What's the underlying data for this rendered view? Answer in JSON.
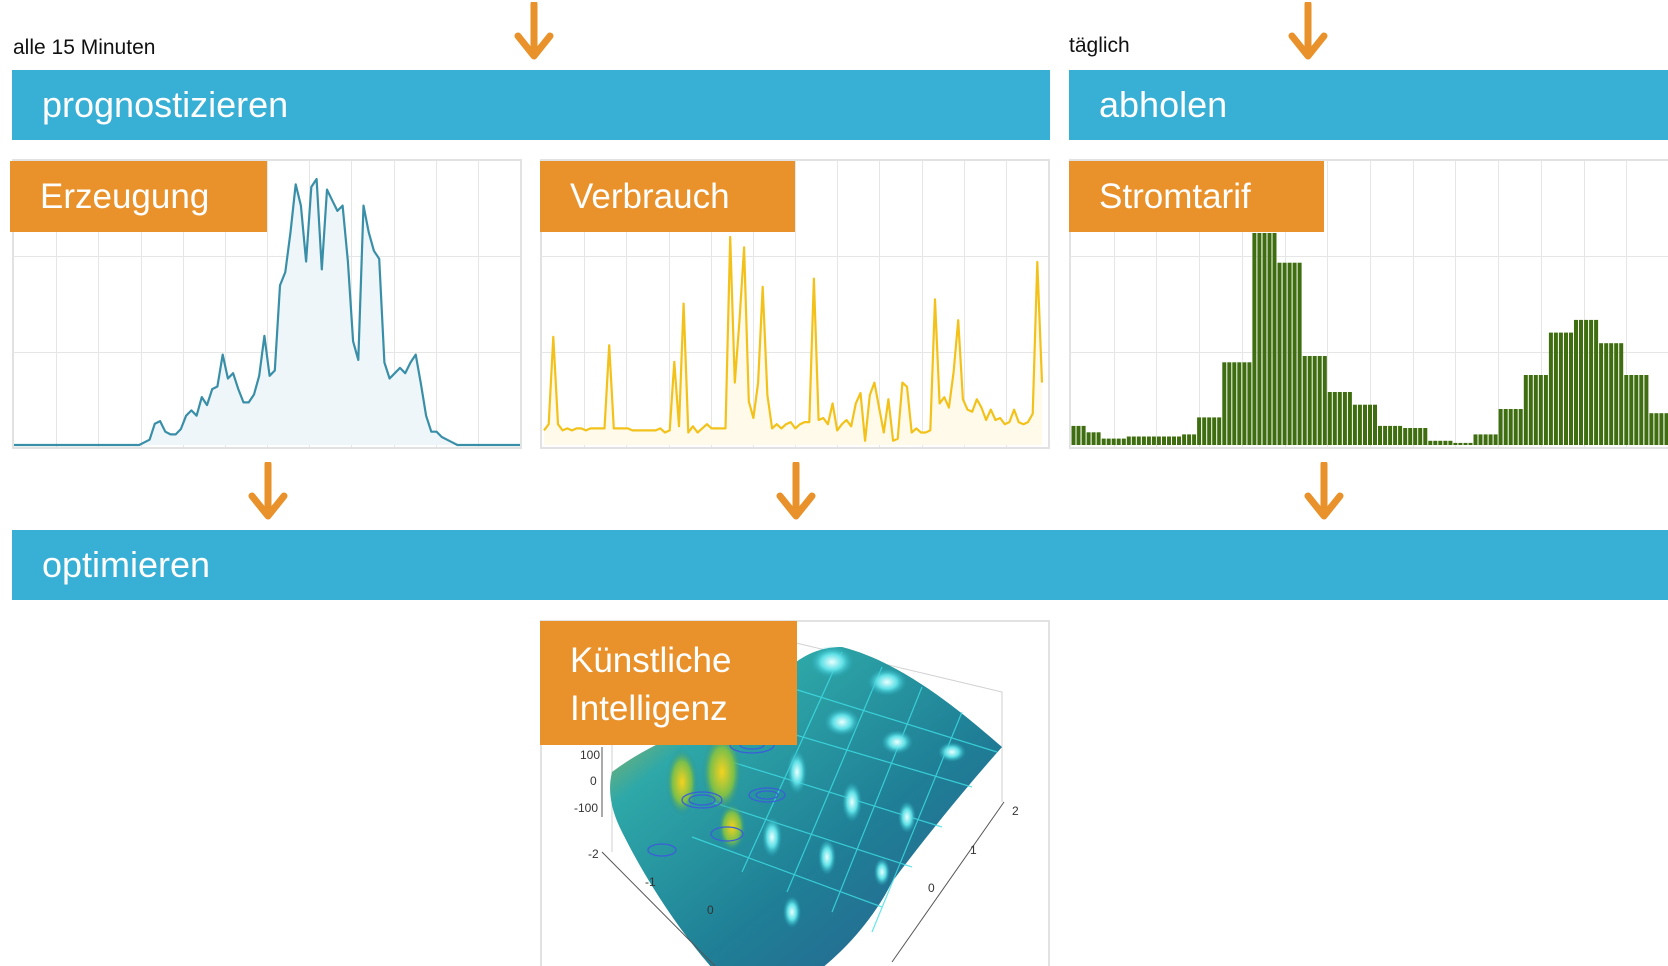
{
  "labels": {
    "frequency_left": "alle 15 Minuten",
    "frequency_right": "täglich"
  },
  "bars": {
    "forecast": "prognostizieren",
    "fetch": "abholen",
    "optimize": "optimieren"
  },
  "panels": {
    "generation": "Erzeugung",
    "consumption": "Verbrauch",
    "tariff": "Stromtarif",
    "ai_line1": "Künstliche",
    "ai_line2": "Intelligenz"
  },
  "ai_plot_ticks": {
    "z": [
      "100",
      "0",
      "-100"
    ],
    "x": [
      "-2",
      "-1",
      "0"
    ],
    "y": [
      "2",
      "1",
      "0"
    ]
  },
  "colors": {
    "bar_blue": "#38afd4",
    "tag_orange": "#e9912b",
    "arrow_orange": "#e9912b",
    "generation_line": "#3a8fa8",
    "consumption_line": "#f2c21b",
    "tariff_bars": "#3f6e10"
  },
  "chart_data": [
    {
      "type": "area",
      "series": [
        {
          "values": [
            0,
            0,
            0,
            0,
            0,
            0,
            0,
            0,
            0,
            0,
            0,
            0,
            0,
            0,
            0,
            0,
            0,
            0,
            0,
            0,
            0,
            0,
            0,
            0,
            0,
            0.01,
            0.02,
            0.08,
            0.09,
            0.05,
            0.04,
            0.04,
            0.06,
            0.11,
            0.13,
            0.11,
            0.18,
            0.15,
            0.21,
            0.22,
            0.34,
            0.25,
            0.27,
            0.21,
            0.16,
            0.16,
            0.19,
            0.26,
            0.41,
            0.26,
            0.28,
            0.6,
            0.65,
            0.8,
            0.98,
            0.9,
            0.69,
            0.97,
            1.0,
            0.66,
            0.96,
            0.92,
            0.88,
            0.9,
            0.69,
            0.39,
            0.32,
            0.9,
            0.8,
            0.73,
            0.7,
            0.31,
            0.25,
            0.27,
            0.29,
            0.27,
            0.31,
            0.34,
            0.23,
            0.11,
            0.05,
            0.05,
            0.03,
            0.02,
            0.01,
            0.0,
            0,
            0,
            0,
            0,
            0,
            0,
            0,
            0,
            0,
            0,
            0,
            0
          ]
        }
      ]
    },
    {
      "type": "line",
      "series": [
        {
          "values": [
            0.07,
            0.1,
            0.52,
            0.1,
            0.07,
            0.08,
            0.07,
            0.08,
            0.08,
            0.07,
            0.08,
            0.08,
            0.08,
            0.08,
            0.48,
            0.08,
            0.08,
            0.08,
            0.08,
            0.07,
            0.07,
            0.07,
            0.07,
            0.07,
            0.07,
            0.08,
            0.06,
            0.07,
            0.4,
            0.09,
            0.68,
            0.06,
            0.09,
            0.06,
            0.08,
            0.1,
            0.08,
            0.08,
            0.08,
            0.08,
            1.0,
            0.3,
            0.6,
            0.95,
            0.21,
            0.13,
            0.3,
            0.76,
            0.24,
            0.08,
            0.1,
            0.08,
            0.1,
            0.11,
            0.08,
            0.1,
            0.11,
            0.11,
            0.8,
            0.12,
            0.13,
            0.1,
            0.2,
            0.07,
            0.1,
            0.12,
            0.09,
            0.2,
            0.25,
            0.02,
            0.24,
            0.3,
            0.18,
            0.06,
            0.22,
            0.02,
            0.03,
            0.3,
            0.28,
            0.06,
            0.08,
            0.06,
            0.06,
            0.07,
            0.7,
            0.2,
            0.23,
            0.18,
            0.35,
            0.6,
            0.22,
            0.17,
            0.16,
            0.22,
            0.18,
            0.12,
            0.17,
            0.12,
            0.13,
            0.1,
            0.11,
            0.17,
            0.11,
            0.1,
            0.11,
            0.15,
            0.88,
            0.3
          ]
        }
      ]
    },
    {
      "type": "bar",
      "series": [
        {
          "values": [
            0.09,
            0.09,
            0.09,
            0.06,
            0.06,
            0.06,
            0.03,
            0.03,
            0.03,
            0.03,
            0.03,
            0.04,
            0.04,
            0.04,
            0.04,
            0.04,
            0.04,
            0.04,
            0.04,
            0.04,
            0.04,
            0.04,
            0.05,
            0.05,
            0.05,
            0.13,
            0.13,
            0.13,
            0.13,
            0.13,
            0.39,
            0.39,
            0.39,
            0.39,
            0.39,
            0.39,
            1.0,
            1.0,
            1.0,
            1.0,
            1.0,
            0.86,
            0.86,
            0.86,
            0.86,
            0.86,
            0.42,
            0.42,
            0.42,
            0.42,
            0.42,
            0.25,
            0.25,
            0.25,
            0.25,
            0.25,
            0.19,
            0.19,
            0.19,
            0.19,
            0.19,
            0.09,
            0.09,
            0.09,
            0.09,
            0.09,
            0.08,
            0.08,
            0.08,
            0.08,
            0.08,
            0.02,
            0.02,
            0.02,
            0.02,
            0.02,
            0.01,
            0.01,
            0.01,
            0.01,
            0.05,
            0.05,
            0.05,
            0.05,
            0.05,
            0.17,
            0.17,
            0.17,
            0.17,
            0.17,
            0.33,
            0.33,
            0.33,
            0.33,
            0.33,
            0.53,
            0.53,
            0.53,
            0.53,
            0.53,
            0.59,
            0.59,
            0.59,
            0.59,
            0.59,
            0.48,
            0.48,
            0.48,
            0.48,
            0.48,
            0.33,
            0.33,
            0.33,
            0.33,
            0.33,
            0.15,
            0.15,
            0.15,
            0.15
          ]
        }
      ]
    }
  ]
}
